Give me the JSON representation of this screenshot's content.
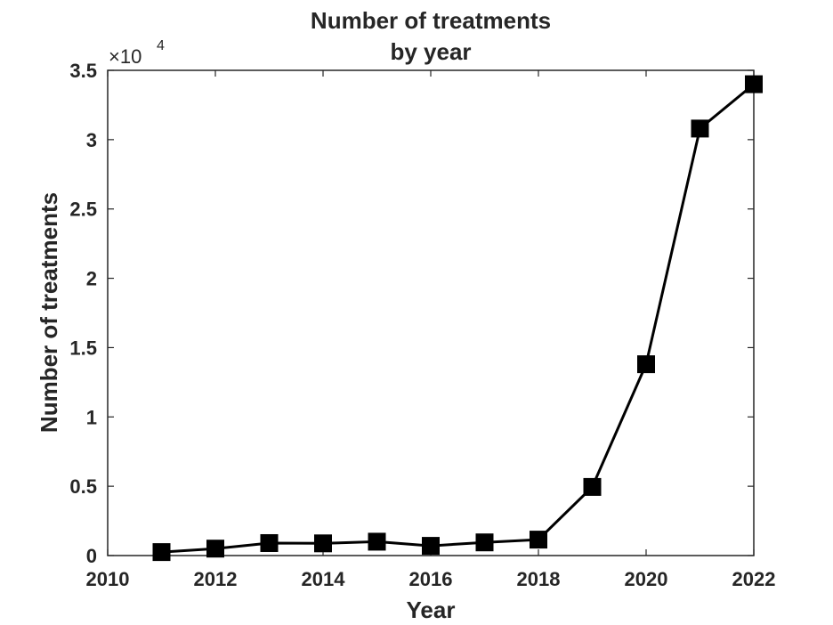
{
  "chart_data": {
    "type": "line",
    "title": [
      "Number of treatments",
      "by year"
    ],
    "xlabel": "Year",
    "ylabel": "Number of treatments",
    "xlim": [
      2010,
      2022
    ],
    "ylim": [
      0,
      35000
    ],
    "x_ticks": [
      "2010",
      "2012",
      "2014",
      "2016",
      "2018",
      "2020",
      "2022"
    ],
    "y_ticks": [
      "0",
      "0.5",
      "1",
      "1.5",
      "2",
      "2.5",
      "3",
      "3.5"
    ],
    "y_multiplier": {
      "base": "×10",
      "exponent": "4"
    },
    "grid": false,
    "series": [
      {
        "marker": "square",
        "color": "#000000",
        "x": [
          2011,
          2012,
          2013,
          2014,
          2015,
          2016,
          2017,
          2018,
          2019,
          2020,
          2021,
          2022
        ],
        "y": [
          250,
          500,
          900,
          880,
          1000,
          700,
          950,
          1150,
          4950,
          13800,
          30800,
          34000
        ]
      }
    ]
  }
}
